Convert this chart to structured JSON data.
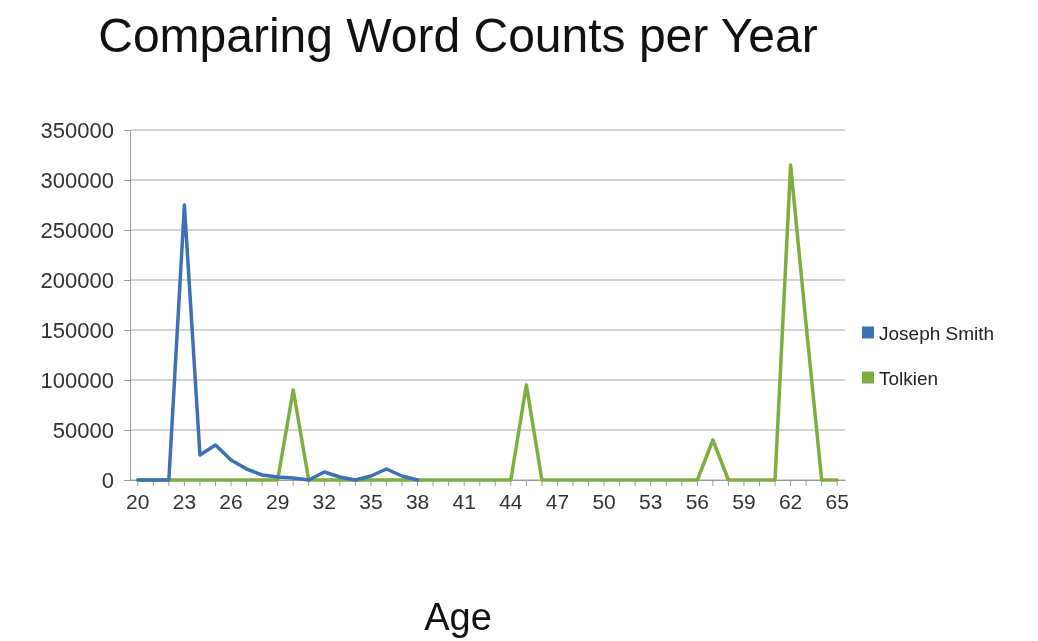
{
  "chart_data": {
    "type": "line",
    "title": "Comparing Word Counts per Year",
    "xlabel": "Age",
    "categories": [
      "20",
      null,
      null,
      "23",
      null,
      null,
      "26",
      null,
      null,
      "29",
      null,
      null,
      "32",
      null,
      null,
      "35",
      null,
      null,
      "38",
      null,
      null,
      "41",
      null,
      null,
      "44",
      null,
      null,
      "47",
      null,
      null,
      "50",
      null,
      null,
      "53",
      null,
      null,
      "56",
      null,
      null,
      "59",
      null,
      null,
      "62",
      null,
      null,
      "65"
    ],
    "series": [
      {
        "name": "Joseph Smith",
        "color": "#3e70b5",
        "values": [
          0,
          0,
          0,
          275000,
          25000,
          35000,
          20000,
          11000,
          5000,
          3000,
          2000,
          0,
          8000,
          3000,
          0,
          4000,
          11000,
          4000,
          0,
          null,
          null,
          null,
          null,
          null,
          null,
          null,
          null,
          null,
          null,
          null,
          null,
          null,
          null,
          null,
          null,
          null,
          null,
          null,
          null,
          null,
          null,
          null,
          null,
          null,
          null,
          null
        ]
      },
      {
        "name": "Tolkien",
        "color": "#80ad40",
        "values": [
          0,
          0,
          0,
          0,
          0,
          0,
          0,
          0,
          0,
          0,
          90000,
          0,
          0,
          0,
          0,
          0,
          0,
          0,
          0,
          0,
          0,
          0,
          0,
          0,
          0,
          95000,
          0,
          0,
          0,
          0,
          0,
          0,
          0,
          0,
          0,
          0,
          0,
          40000,
          0,
          0,
          0,
          0,
          315000,
          155000,
          0,
          0
        ]
      }
    ],
    "ylim": [
      0,
      350000
    ],
    "yticks": [
      0,
      50000,
      100000,
      150000,
      200000,
      250000,
      300000,
      350000
    ],
    "grid": "y",
    "legend": "right"
  }
}
